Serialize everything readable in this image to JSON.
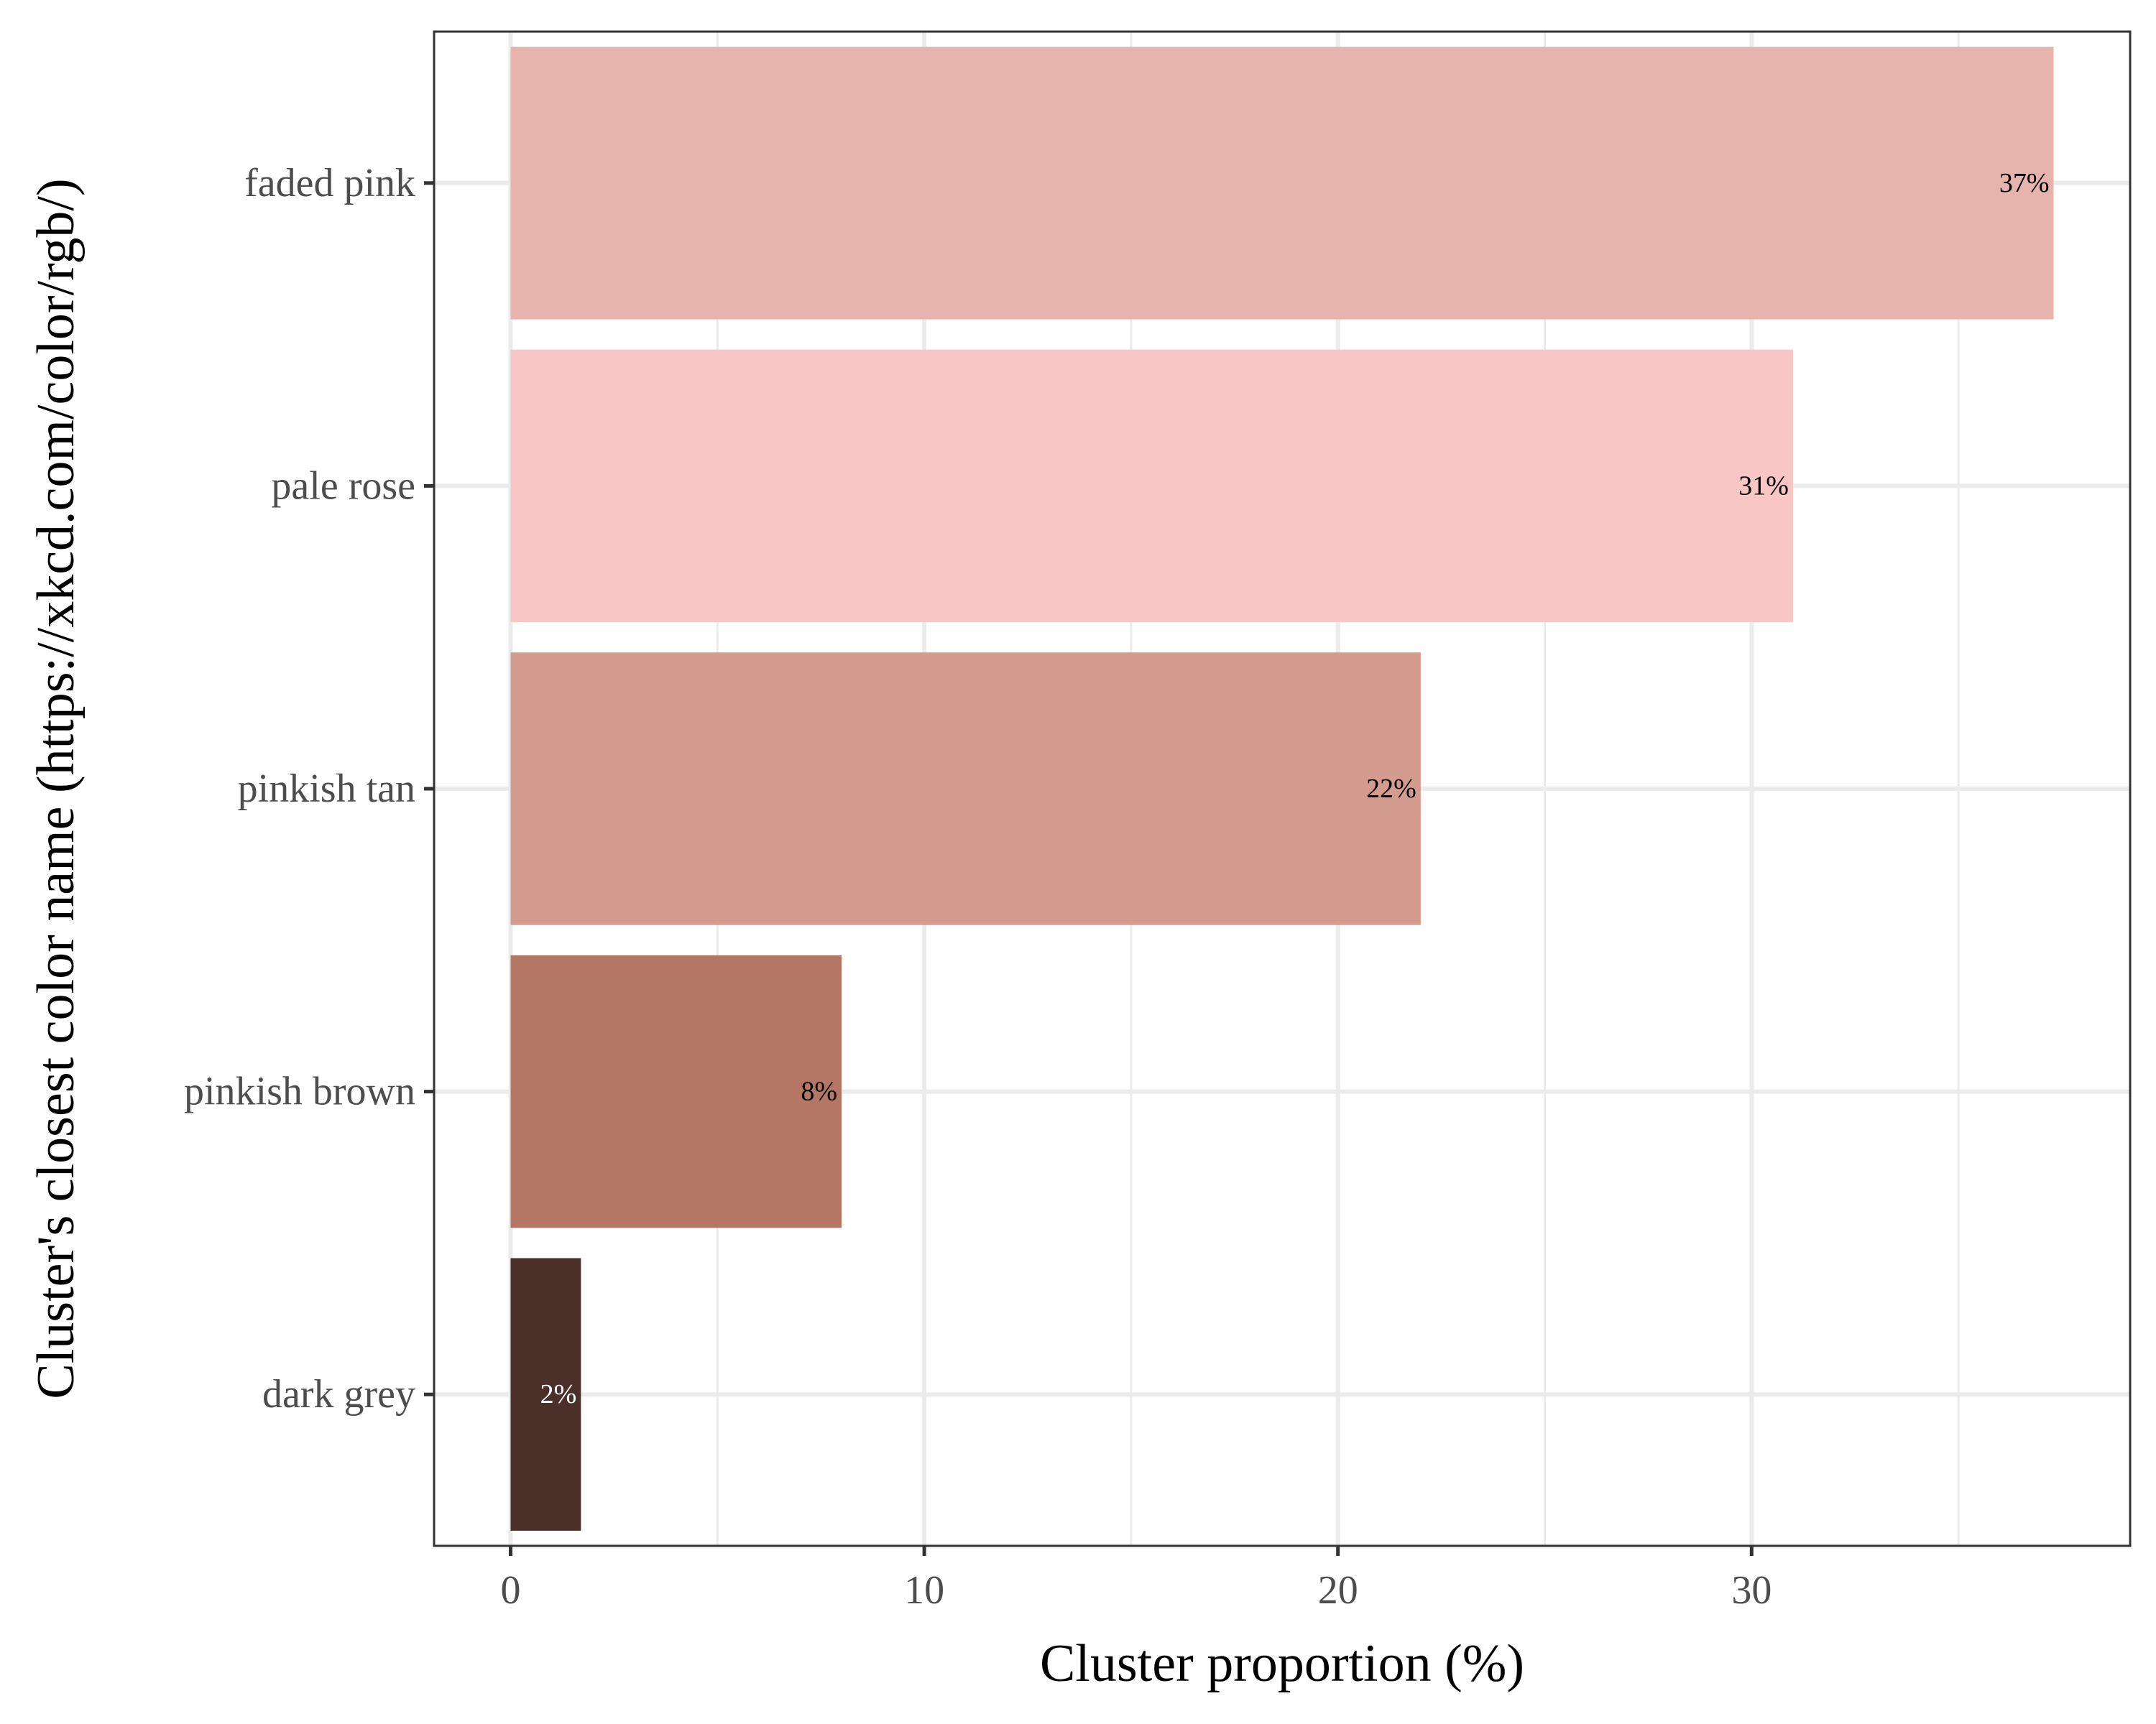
{
  "chart_data": {
    "type": "bar",
    "orientation": "horizontal",
    "xlabel": "Cluster proportion (%)",
    "ylabel": "Cluster's closest color name (https://xkcd.com/color/rgb/)",
    "categories": [
      "faded pink",
      "pale rose",
      "pinkish tan",
      "pinkish brown",
      "dark grey"
    ],
    "values": [
      37.3,
      31.0,
      22.0,
      8.0,
      1.7
    ],
    "labels": [
      "37%",
      "31%",
      "22%",
      "8%",
      "2%"
    ],
    "colors": [
      "#e7b3ad",
      "#f8c6c4",
      "#d39c8f",
      "#b47765",
      "#4a3029"
    ],
    "label_colors": [
      "#000000",
      "#000000",
      "#000000",
      "#000000",
      "#ffffff"
    ],
    "x_ticks": [
      0,
      10,
      20,
      30
    ],
    "x_tick_labels": [
      "0",
      "10",
      "20",
      "30"
    ],
    "xlim": [
      -1.85,
      39.15
    ],
    "grid": true,
    "legend": "none"
  }
}
